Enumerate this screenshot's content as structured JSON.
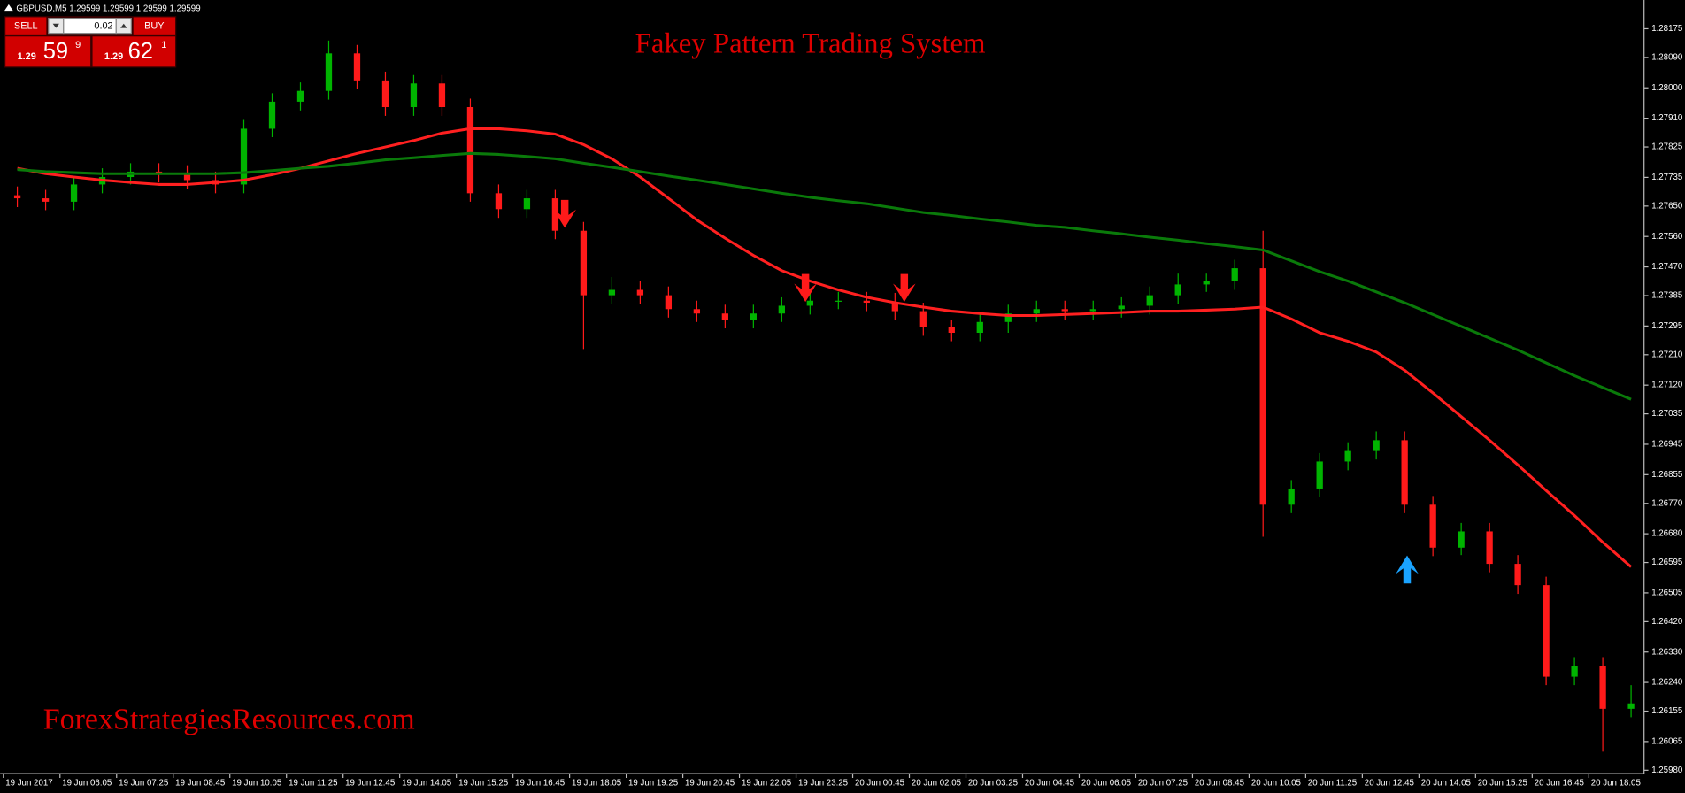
{
  "symbol_info": "GBPUSD,M5  1.29599 1.29599 1.29599 1.29599",
  "trade_panel": {
    "sell": "SELL",
    "buy": "BUY",
    "lot": 0.02,
    "bid": {
      "big": 1.29,
      "pips": 59,
      "point": 9
    },
    "ask": {
      "big": 1.29,
      "pips": 62,
      "point": 1
    }
  },
  "chart_data": {
    "type": "candlestick",
    "title": "Fakey Pattern Trading System",
    "annotations": [
      "ForexStrategiesResources.com"
    ],
    "colors": {
      "up": "#00b400",
      "down": "#ff1a1a"
    },
    "categories": [
      "19 Jun 2017",
      null,
      "19 Jun 06:05",
      null,
      "19 Jun 07:25",
      null,
      "19 Jun 08:45",
      null,
      "19 Jun 10:05",
      null,
      "19 Jun 11:25",
      null,
      "19 Jun 12:45",
      null,
      "19 Jun 14:05",
      null,
      "19 Jun 15:25",
      null,
      "19 Jun 16:45",
      null,
      "19 Jun 18:05",
      null,
      "19 Jun 19:25",
      null,
      "19 Jun 20:45",
      null,
      "19 Jun 22:05",
      null,
      "19 Jun 23:25",
      null,
      "20 Jun 00:45",
      null,
      "20 Jun 02:05",
      null,
      "20 Jun 03:25",
      null,
      "20 Jun 04:45",
      null,
      "20 Jun 06:05",
      null,
      "20 Jun 07:25",
      null,
      "20 Jun 08:45",
      null,
      "20 Jun 10:05",
      null,
      "20 Jun 11:25",
      null,
      "20 Jun 12:45",
      null,
      "20 Jun 14:05",
      null,
      "20 Jun 15:25",
      null,
      "20 Jun 16:45",
      null,
      "20 Jun 18:05",
      null
    ],
    "open": [
      1.27682,
      1.27673,
      1.27663,
      1.27714,
      1.27736,
      1.27752,
      1.27746,
      1.27727,
      1.27714,
      1.27879,
      1.27959,
      1.27991,
      1.28102,
      1.28022,
      1.27943,
      1.28013,
      1.27943,
      1.27688,
      1.27641,
      1.27673,
      1.27577,
      1.27386,
      1.27402,
      1.27386,
      1.27345,
      1.27332,
      1.27313,
      1.27332,
      1.27355,
      1.2737,
      1.2737,
      1.27364,
      1.27339,
      1.27291,
      1.27275,
      1.27307,
      1.27332,
      1.27345,
      1.27339,
      1.27345,
      1.27355,
      1.27386,
      1.27418,
      1.27428,
      1.27466,
      1.26766,
      1.26814,
      1.26894,
      1.26925,
      1.26957,
      1.26766,
      1.26639,
      1.26687,
      1.26591,
      1.26528,
      1.26257,
      1.26289,
      1.26162
    ],
    "high": [
      1.27708,
      1.27698,
      1.27739,
      1.27762,
      1.27777,
      1.27777,
      1.27771,
      1.27752,
      1.27905,
      1.27984,
      1.28016,
      1.2814,
      1.28127,
      1.28048,
      1.28038,
      1.28038,
      1.27968,
      1.27714,
      1.27698,
      1.27698,
      1.27603,
      1.2744,
      1.27428,
      1.27412,
      1.2737,
      1.27358,
      1.27358,
      1.2738,
      1.27396,
      1.27396,
      1.27396,
      1.27393,
      1.27364,
      1.27313,
      1.27332,
      1.27358,
      1.2737,
      1.2737,
      1.2737,
      1.2738,
      1.27412,
      1.2745,
      1.2745,
      1.27491,
      1.27577,
      1.26839,
      1.26919,
      1.26951,
      1.26983,
      1.26983,
      1.26792,
      1.26712,
      1.26712,
      1.26617,
      1.26553,
      1.26315,
      1.26315,
      1.26232
    ],
    "low": [
      1.27647,
      1.27638,
      1.27638,
      1.27688,
      1.27714,
      1.2772,
      1.27701,
      1.27688,
      1.27688,
      1.27854,
      1.27933,
      1.27965,
      1.27997,
      1.27917,
      1.27917,
      1.27917,
      1.27663,
      1.27615,
      1.27615,
      1.27552,
      1.27227,
      1.27361,
      1.27361,
      1.2732,
      1.27307,
      1.27288,
      1.27288,
      1.27307,
      1.27329,
      1.27345,
      1.27339,
      1.27313,
      1.27266,
      1.2725,
      1.2725,
      1.27275,
      1.27307,
      1.27313,
      1.27313,
      1.2732,
      1.27329,
      1.27361,
      1.27396,
      1.27402,
      1.26671,
      1.26741,
      1.26788,
      1.26868,
      1.269,
      1.26741,
      1.26614,
      1.26617,
      1.26566,
      1.26502,
      1.26232,
      1.26232,
      1.26035,
      1.26137
    ],
    "close": [
      1.27673,
      1.27663,
      1.27714,
      1.27736,
      1.27752,
      1.27746,
      1.27727,
      1.27714,
      1.27879,
      1.27959,
      1.27991,
      1.28102,
      1.28022,
      1.27943,
      1.28013,
      1.27943,
      1.27688,
      1.27641,
      1.27673,
      1.27577,
      1.27386,
      1.27402,
      1.27386,
      1.27345,
      1.27332,
      1.27313,
      1.27332,
      1.27355,
      1.2737,
      1.2737,
      1.27364,
      1.27339,
      1.27291,
      1.27275,
      1.27307,
      1.27332,
      1.27345,
      1.27339,
      1.27345,
      1.27355,
      1.27386,
      1.27418,
      1.27428,
      1.27466,
      1.26766,
      1.26814,
      1.26894,
      1.26925,
      1.26957,
      1.26766,
      1.26639,
      1.26687,
      1.26591,
      1.26528,
      1.26257,
      1.26289,
      1.26162,
      1.26178
    ],
    "lines": [
      {
        "color": "#ff2020",
        "values": [
          1.27762,
          1.27746,
          1.27736,
          1.27727,
          1.2772,
          1.27714,
          1.27714,
          1.2772,
          1.27727,
          1.27743,
          1.27762,
          1.27784,
          1.27806,
          1.27825,
          1.27844,
          1.27866,
          1.27879,
          1.27879,
          1.27873,
          1.27863,
          1.27832,
          1.2779,
          1.27736,
          1.27673,
          1.27609,
          1.27555,
          1.27504,
          1.27459,
          1.27428,
          1.27402,
          1.2738,
          1.27364,
          1.27351,
          1.27339,
          1.27332,
          1.27326,
          1.27326,
          1.27329,
          1.27332,
          1.27335,
          1.27339,
          1.27339,
          1.27342,
          1.27345,
          1.27351,
          1.27316,
          1.27275,
          1.2725,
          1.27218,
          1.27164,
          1.27097,
          1.27027,
          1.26957,
          1.26884,
          1.26808,
          1.26734,
          1.26655,
          1.26582
        ]
      },
      {
        "color": "#0a7a0a",
        "values": [
          1.27758,
          1.27752,
          1.27749,
          1.27746,
          1.27746,
          1.27746,
          1.27746,
          1.27746,
          1.27749,
          1.27755,
          1.27762,
          1.27768,
          1.27777,
          1.27787,
          1.27793,
          1.278,
          1.27806,
          1.27803,
          1.27797,
          1.2779,
          1.27777,
          1.27765,
          1.27752,
          1.27739,
          1.27727,
          1.27714,
          1.27701,
          1.27688,
          1.27676,
          1.27666,
          1.27657,
          1.27644,
          1.27631,
          1.27622,
          1.27612,
          1.27603,
          1.27593,
          1.27587,
          1.27577,
          1.27568,
          1.27558,
          1.27549,
          1.27539,
          1.2753,
          1.2752,
          1.27488,
          1.27456,
          1.27428,
          1.27396,
          1.27364,
          1.27329,
          1.27294,
          1.27259,
          1.27224,
          1.27186,
          1.27148,
          1.27113,
          1.27078
        ]
      }
    ],
    "ylim": [
      1.2597,
      1.2826
    ],
    "yticks": [
      1.28175,
      {
        "value": 1.2809,
        "label": "1.28090"
      },
      {
        "value": 1.28,
        "label": "1.28000"
      },
      {
        "value": 1.2791,
        "label": "1.27910"
      },
      1.27825,
      1.27735,
      {
        "value": 1.2765,
        "label": "1.27650"
      },
      {
        "value": 1.2756,
        "label": "1.27560"
      },
      {
        "value": 1.2747,
        "label": "1.27470"
      },
      1.27385,
      1.27295,
      {
        "value": 1.2721,
        "label": "1.27210"
      },
      {
        "value": 1.2712,
        "label": "1.27120"
      },
      1.27035,
      1.26945,
      1.26855,
      {
        "value": 1.2677,
        "label": "1.26770"
      },
      {
        "value": 1.2668,
        "label": "1.26680"
      },
      1.26595,
      1.26505,
      {
        "value": 1.2642,
        "label": "1.26420"
      },
      {
        "value": 1.2633,
        "label": "1.26330"
      },
      {
        "value": 1.2624,
        "label": "1.26240"
      },
      1.26155,
      1.26065,
      {
        "value": 1.2598,
        "label": "1.25980"
      }
    ]
  }
}
